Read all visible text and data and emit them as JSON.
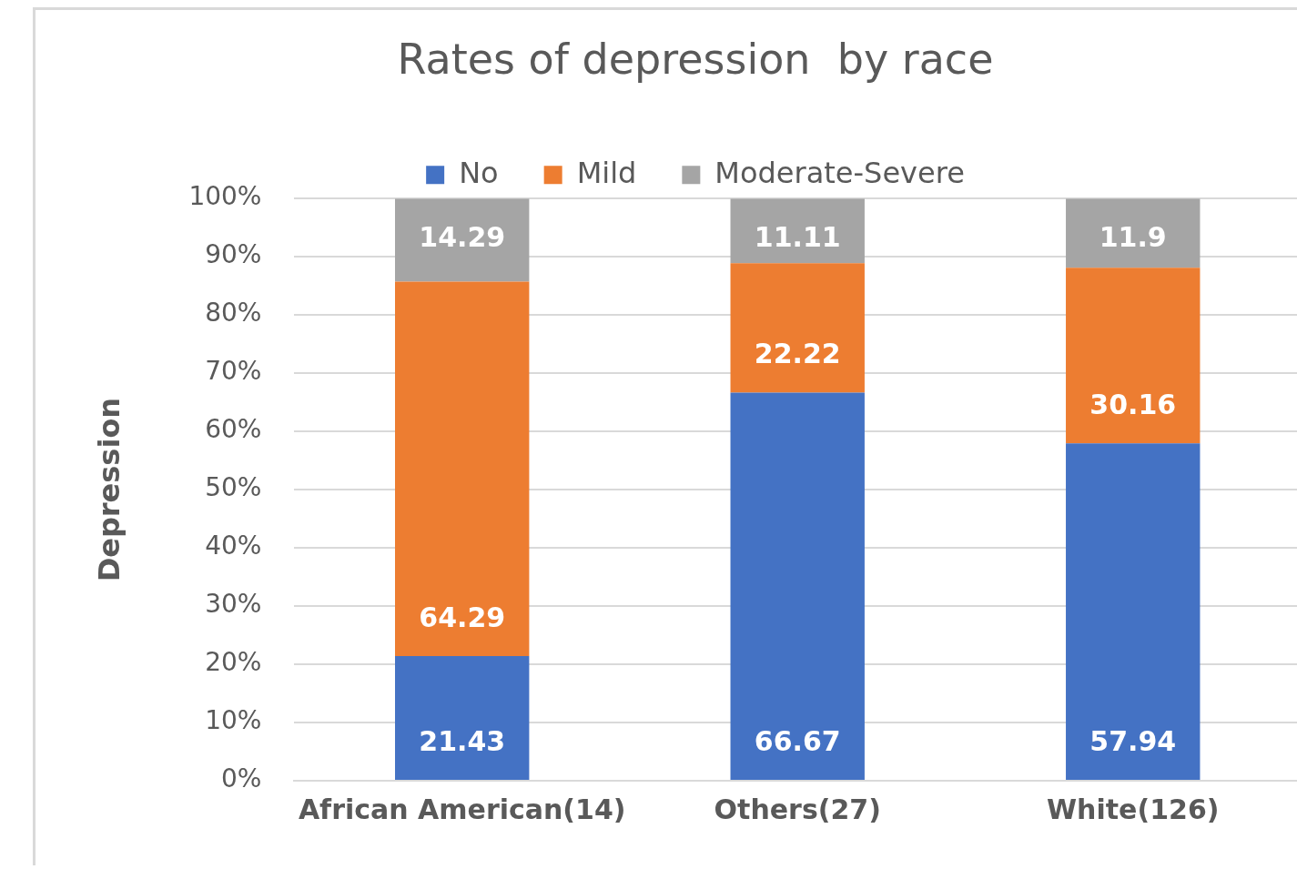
{
  "chart_data": {
    "type": "bar",
    "title": "Rates of depression  by race",
    "ylabel": "Depression",
    "categories": [
      "African American(14)",
      "Others(27)",
      "White(126)"
    ],
    "series": [
      {
        "name": "No",
        "color": "#4472c4",
        "values": [
          21.43,
          66.67,
          57.94
        ]
      },
      {
        "name": "Mild",
        "color": "#ed7d31",
        "values": [
          64.29,
          22.22,
          30.16
        ]
      },
      {
        "name": "Moderate-Severe",
        "color": "#a5a5a5",
        "values": [
          14.29,
          11.11,
          11.9
        ]
      }
    ],
    "stacked": true,
    "ylim": [
      0,
      100
    ],
    "yticks": [
      {
        "value": 0,
        "label": "0%"
      },
      {
        "value": 10,
        "label": "10%"
      },
      {
        "value": 20,
        "label": "20%"
      },
      {
        "value": 30,
        "label": "30%"
      },
      {
        "value": 40,
        "label": "40%"
      },
      {
        "value": 50,
        "label": "50%"
      },
      {
        "value": 60,
        "label": "60%"
      },
      {
        "value": 70,
        "label": "70%"
      },
      {
        "value": 80,
        "label": "80%"
      },
      {
        "value": 90,
        "label": "90%"
      },
      {
        "value": 100,
        "label": "100%"
      }
    ],
    "grid": "y",
    "legend": "top",
    "data_labels": true
  }
}
